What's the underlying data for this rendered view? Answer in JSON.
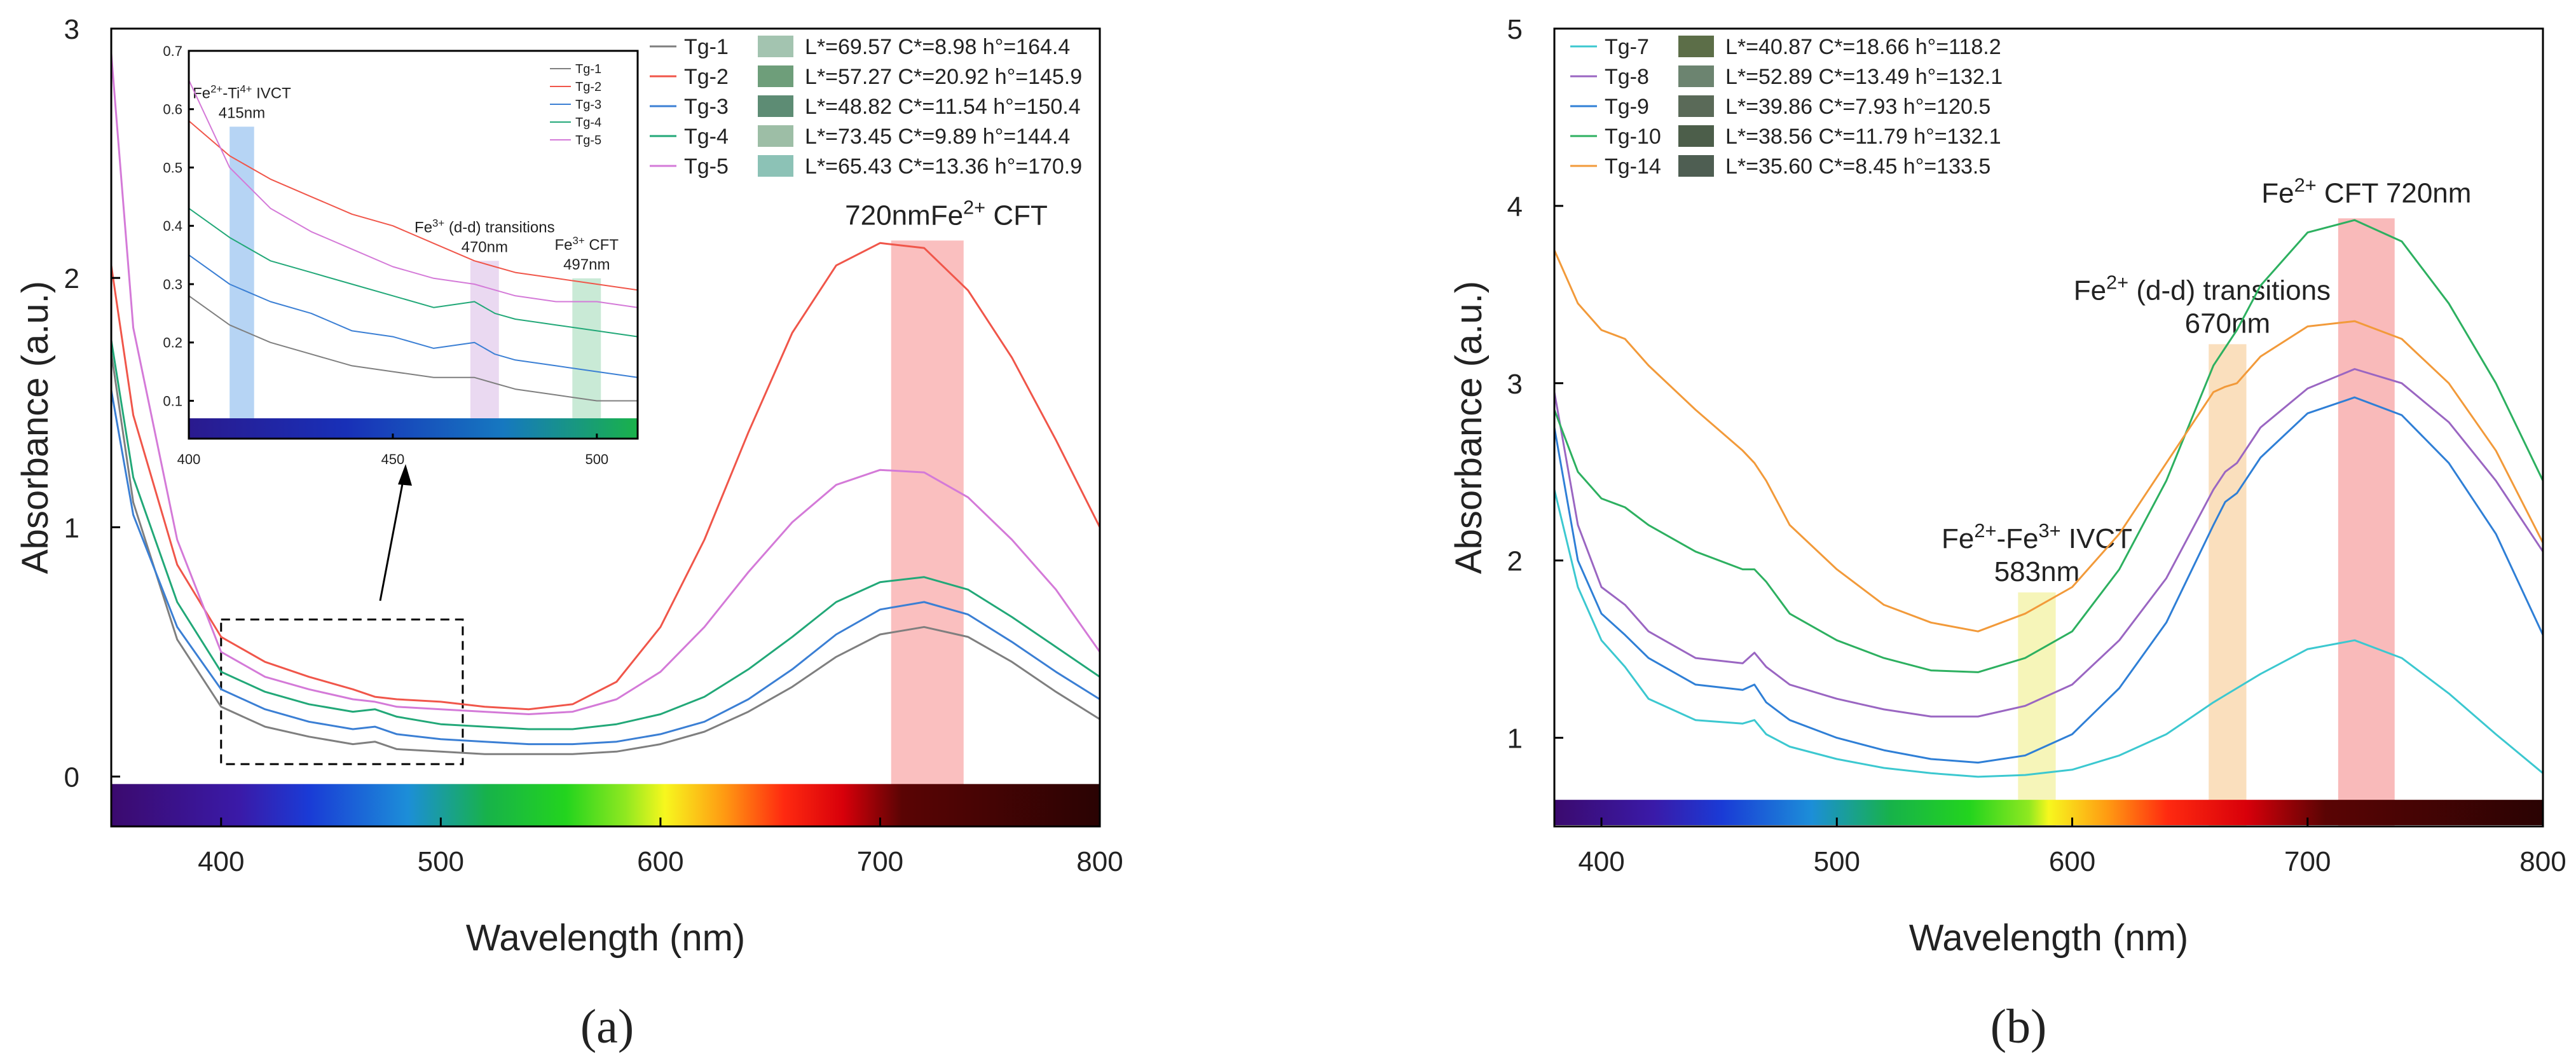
{
  "colors": {
    "Tg-1": "#7f7f7f",
    "Tg-2": "#f0564a",
    "Tg-3": "#3b7fd4",
    "Tg-4": "#22a878",
    "Tg-5": "#d47ad8",
    "Tg-7": "#3cc8d0",
    "Tg-8": "#9a66c2",
    "Tg-9": "#2f7fd6",
    "Tg-10": "#2db060",
    "Tg-14": "#f29a3a"
  },
  "chart_data": [
    {
      "id": "a",
      "type": "line",
      "panel_label": "(a)",
      "title": "",
      "xlabel": "Wavelength (nm)",
      "ylabel": "Absorbance (a.u.)",
      "xlim": [
        350,
        800
      ],
      "ylim": [
        -0.2,
        3.0
      ],
      "xticks": [
        400,
        500,
        600,
        700,
        800
      ],
      "yticks": [
        0,
        1,
        2,
        3
      ],
      "x": [
        350,
        360,
        380,
        400,
        420,
        440,
        460,
        470,
        480,
        500,
        520,
        540,
        560,
        580,
        600,
        620,
        640,
        660,
        680,
        700,
        720,
        740,
        760,
        780,
        800
      ],
      "series": [
        {
          "name": "Tg-1",
          "values": [
            1.7,
            1.1,
            0.55,
            0.28,
            0.2,
            0.16,
            0.13,
            0.14,
            0.11,
            0.1,
            0.09,
            0.09,
            0.09,
            0.1,
            0.13,
            0.18,
            0.26,
            0.36,
            0.48,
            0.57,
            0.6,
            0.56,
            0.46,
            0.34,
            0.23
          ]
        },
        {
          "name": "Tg-2",
          "values": [
            2.05,
            1.45,
            0.85,
            0.56,
            0.46,
            0.4,
            0.35,
            0.32,
            0.31,
            0.3,
            0.28,
            0.27,
            0.29,
            0.38,
            0.6,
            0.95,
            1.38,
            1.78,
            2.05,
            2.14,
            2.12,
            1.95,
            1.68,
            1.35,
            1.0
          ]
        },
        {
          "name": "Tg-3",
          "values": [
            1.55,
            1.05,
            0.6,
            0.35,
            0.27,
            0.22,
            0.19,
            0.2,
            0.17,
            0.15,
            0.14,
            0.13,
            0.13,
            0.14,
            0.17,
            0.22,
            0.31,
            0.43,
            0.57,
            0.67,
            0.7,
            0.65,
            0.54,
            0.42,
            0.31
          ]
        },
        {
          "name": "Tg-4",
          "values": [
            1.75,
            1.2,
            0.7,
            0.42,
            0.34,
            0.29,
            0.26,
            0.27,
            0.24,
            0.21,
            0.2,
            0.19,
            0.19,
            0.21,
            0.25,
            0.32,
            0.43,
            0.56,
            0.7,
            0.78,
            0.8,
            0.75,
            0.64,
            0.52,
            0.4
          ]
        },
        {
          "name": "Tg-5",
          "values": [
            2.9,
            1.8,
            0.95,
            0.5,
            0.4,
            0.35,
            0.31,
            0.3,
            0.28,
            0.27,
            0.26,
            0.25,
            0.26,
            0.31,
            0.42,
            0.6,
            0.82,
            1.02,
            1.17,
            1.23,
            1.22,
            1.12,
            0.95,
            0.75,
            0.5
          ]
        }
      ],
      "legend": [
        {
          "name": "Tg-1",
          "swatch": "#a3c4b0",
          "L": "L*=69.57",
          "C": "C*=8.98",
          "h": "h°=164.4"
        },
        {
          "name": "Tg-2",
          "swatch": "#6e9e7a",
          "L": "L*=57.27",
          "C": "C*=20.92",
          "h": "h°=145.9"
        },
        {
          "name": "Tg-3",
          "swatch": "#5d8c74",
          "L": "L*=48.82",
          "C": "C*=11.54",
          "h": "h°=150.4"
        },
        {
          "name": "Tg-4",
          "swatch": "#9dbea6",
          "L": "L*=73.45",
          "C": "C*=9.89",
          "h": "h°=144.4"
        },
        {
          "name": "Tg-5",
          "swatch": "#8cc2b6",
          "L": "L*=65.43",
          "C": "C*=13.36",
          "h": "h°=170.9"
        }
      ],
      "bands": [
        {
          "from": 705,
          "to": 738,
          "color": "#f8a9a9",
          "label": "720nmFe",
          "label_sup": "2+",
          "label_after": " CFT"
        }
      ],
      "zoom_box": {
        "x": [
          400,
          510
        ],
        "y": [
          0.05,
          0.63
        ]
      }
    },
    {
      "id": "a-inset",
      "type": "line",
      "xlim": [
        400,
        510
      ],
      "ylim": [
        0.07,
        0.7
      ],
      "xticks": [
        400,
        450,
        500
      ],
      "yticks": [
        0.1,
        0.2,
        0.3,
        0.4,
        0.5,
        0.6,
        0.7
      ],
      "ytick_labels": [
        "0.1",
        "0.2",
        "0.3",
        "0.4",
        "0.5",
        "0.6",
        "0.7"
      ],
      "x": [
        400,
        410,
        420,
        430,
        440,
        450,
        460,
        470,
        475,
        480,
        490,
        500,
        510
      ],
      "series": [
        {
          "name": "Tg-1",
          "values": [
            0.28,
            0.23,
            0.2,
            0.18,
            0.16,
            0.15,
            0.14,
            0.14,
            0.13,
            0.12,
            0.11,
            0.1,
            0.1
          ]
        },
        {
          "name": "Tg-2",
          "values": [
            0.58,
            0.52,
            0.48,
            0.45,
            0.42,
            0.4,
            0.37,
            0.34,
            0.33,
            0.32,
            0.31,
            0.3,
            0.29
          ]
        },
        {
          "name": "Tg-3",
          "values": [
            0.35,
            0.3,
            0.27,
            0.25,
            0.22,
            0.21,
            0.19,
            0.2,
            0.18,
            0.17,
            0.16,
            0.15,
            0.14
          ]
        },
        {
          "name": "Tg-4",
          "values": [
            0.43,
            0.38,
            0.34,
            0.32,
            0.3,
            0.28,
            0.26,
            0.27,
            0.25,
            0.24,
            0.23,
            0.22,
            0.21
          ]
        },
        {
          "name": "Tg-5",
          "values": [
            0.65,
            0.5,
            0.43,
            0.39,
            0.36,
            0.33,
            0.31,
            0.3,
            0.29,
            0.28,
            0.27,
            0.27,
            0.26
          ]
        }
      ],
      "legend": [
        "Tg-1",
        "Tg-2",
        "Tg-3",
        "Tg-4",
        "Tg-5"
      ],
      "bands": [
        {
          "from": 410,
          "to": 416,
          "color": "#a9cdf2",
          "l1": "Fe",
          "s1": "2+",
          "l2": "-Ti",
          "s2": "4+",
          "l3": " IVCT",
          "line2": "415nm"
        },
        {
          "from": 469,
          "to": 476,
          "color": "#e6d2ef",
          "l1": "Fe",
          "s1": "3+",
          "l2": " (d-d) transitions",
          "s2": "",
          "l3": "",
          "line2": "470nm"
        },
        {
          "from": 494,
          "to": 501,
          "color": "#bfe6cf",
          "l1": "Fe",
          "s1": "3+",
          "l2": " CFT",
          "s2": "",
          "l3": "",
          "line2": "497nm"
        }
      ]
    },
    {
      "id": "b",
      "type": "line",
      "panel_label": "(b)",
      "title": "",
      "xlabel": "Wavelength (nm)",
      "ylabel": "Absorbance (a.u.)",
      "xlim": [
        380,
        800
      ],
      "ylim": [
        0.5,
        5.0
      ],
      "xticks": [
        400,
        500,
        600,
        700,
        800
      ],
      "yticks": [
        1,
        2,
        3,
        4,
        5
      ],
      "x": [
        380,
        390,
        400,
        410,
        420,
        440,
        460,
        465,
        470,
        480,
        500,
        520,
        540,
        560,
        580,
        600,
        620,
        640,
        660,
        665,
        670,
        680,
        700,
        720,
        740,
        760,
        780,
        800
      ],
      "series": [
        {
          "name": "Tg-7",
          "values": [
            2.4,
            1.85,
            1.55,
            1.4,
            1.22,
            1.1,
            1.08,
            1.1,
            1.02,
            0.95,
            0.88,
            0.83,
            0.8,
            0.78,
            0.79,
            0.82,
            0.9,
            1.02,
            1.2,
            1.24,
            1.28,
            1.36,
            1.5,
            1.55,
            1.45,
            1.25,
            1.02,
            0.8
          ]
        },
        {
          "name": "Tg-8",
          "values": [
            2.95,
            2.2,
            1.85,
            1.75,
            1.6,
            1.45,
            1.42,
            1.48,
            1.4,
            1.3,
            1.22,
            1.16,
            1.12,
            1.12,
            1.18,
            1.3,
            1.55,
            1.9,
            2.4,
            2.5,
            2.55,
            2.75,
            2.97,
            3.08,
            3.0,
            2.78,
            2.45,
            2.05
          ]
        },
        {
          "name": "Tg-9",
          "values": [
            2.75,
            2.0,
            1.7,
            1.58,
            1.45,
            1.3,
            1.27,
            1.3,
            1.2,
            1.1,
            1.0,
            0.93,
            0.88,
            0.86,
            0.9,
            1.02,
            1.28,
            1.65,
            2.2,
            2.33,
            2.38,
            2.58,
            2.83,
            2.92,
            2.82,
            2.55,
            2.15,
            1.58
          ]
        },
        {
          "name": "Tg-10",
          "values": [
            2.85,
            2.5,
            2.35,
            2.3,
            2.2,
            2.05,
            1.95,
            1.95,
            1.88,
            1.7,
            1.55,
            1.45,
            1.38,
            1.37,
            1.45,
            1.6,
            1.95,
            2.45,
            3.1,
            3.2,
            3.3,
            3.55,
            3.85,
            3.92,
            3.8,
            3.45,
            3.0,
            2.45
          ]
        },
        {
          "name": "Tg-14",
          "values": [
            3.75,
            3.45,
            3.3,
            3.25,
            3.1,
            2.85,
            2.62,
            2.55,
            2.45,
            2.2,
            1.95,
            1.75,
            1.65,
            1.6,
            1.7,
            1.85,
            2.15,
            2.55,
            2.95,
            2.98,
            3.0,
            3.15,
            3.32,
            3.35,
            3.25,
            3.0,
            2.62,
            2.1
          ]
        }
      ],
      "legend": [
        {
          "name": "Tg-7",
          "swatch": "#5c6e48",
          "L": "L*=40.87",
          "C": "C*=18.66",
          "h": "h°=118.2"
        },
        {
          "name": "Tg-8",
          "swatch": "#6c8470",
          "L": "L*=52.89",
          "C": "C*=13.49",
          "h": "h°=132.1"
        },
        {
          "name": "Tg-9",
          "swatch": "#5a6a58",
          "L": "L*=39.86",
          "C": "C*=7.93",
          "h": "h°=120.5"
        },
        {
          "name": "Tg-10",
          "swatch": "#4c5e4a",
          "L": "L*=38.56",
          "C": "C*=11.79",
          "h": "h°=132.1"
        },
        {
          "name": "Tg-14",
          "swatch": "#4e5e52",
          "L": "L*=35.60",
          "C": "C*=8.45",
          "h": "h°=133.5"
        }
      ],
      "bands": [
        {
          "from": 577,
          "to": 593,
          "color": "#f4f2a8",
          "l1": "Fe",
          "s1": "2+",
          "l2": "-Fe",
          "s2": "3+",
          "l3": " IVCT",
          "line2": "583nm"
        },
        {
          "from": 658,
          "to": 674,
          "color": "#f9d7ad",
          "l1": "Fe",
          "s1": "2+",
          "l2": " (d-d) transitions",
          "s2": "",
          "l3": "",
          "line2": "670nm"
        },
        {
          "from": 713,
          "to": 737,
          "color": "#f8a9a9",
          "l1": "Fe",
          "s1": "2+",
          "l2": " CFT 720nm",
          "s2": "",
          "l3": "",
          "line2": ""
        }
      ]
    }
  ]
}
